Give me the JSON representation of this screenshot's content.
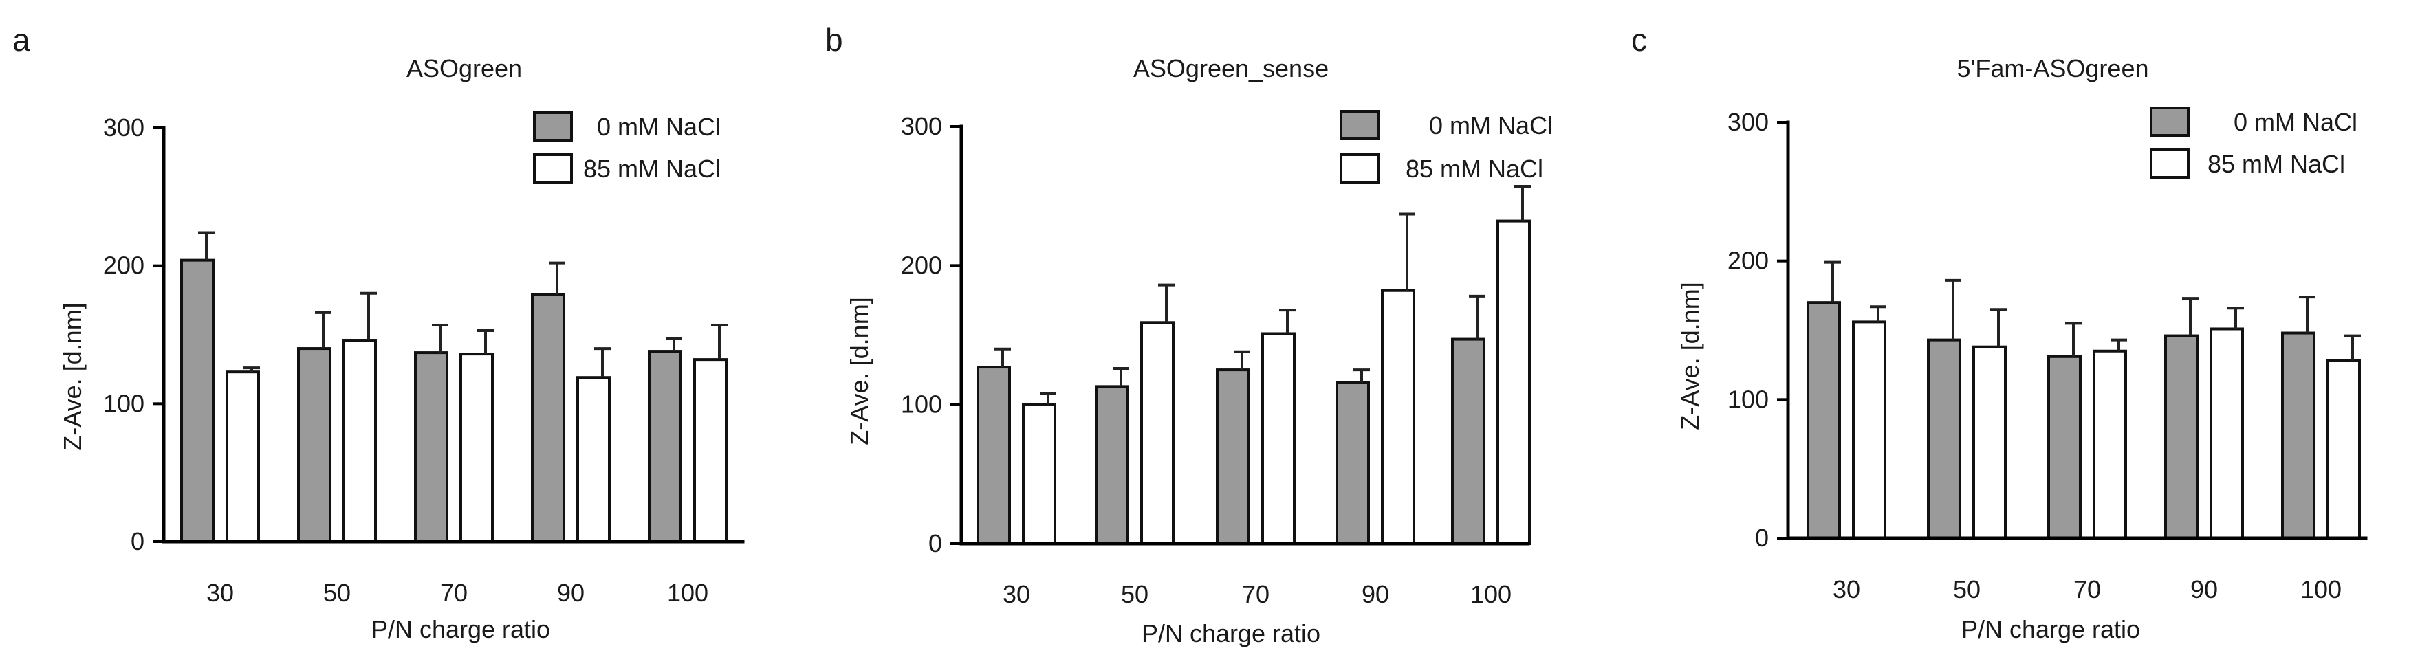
{
  "colors": {
    "series_0": "#9a9a9a",
    "series_1": "#ffffff",
    "axis": "#000000"
  },
  "chart_data": [
    {
      "type": "bar",
      "panel_label": "a",
      "title": "ASOgreen",
      "xlabel": "P/N charge ratio",
      "ylabel": "Z-Ave. [d.nm]",
      "ylim": [
        0,
        300
      ],
      "yticks": [
        "0",
        "100",
        "200",
        "300"
      ],
      "categories": [
        "30",
        "50",
        "70",
        "90",
        "100"
      ],
      "legend_position": "top-right",
      "series": [
        {
          "name": "0 mM NaCl",
          "values": [
            204,
            140,
            137,
            179,
            138
          ],
          "errors": [
            20,
            26,
            20,
            23,
            9
          ]
        },
        {
          "name": "85 mM NaCl",
          "values": [
            123,
            146,
            136,
            119,
            132
          ],
          "errors": [
            3,
            34,
            17,
            21,
            25
          ]
        }
      ]
    },
    {
      "type": "bar",
      "panel_label": "b",
      "title": "ASOgreen_sense",
      "xlabel": "P/N charge ratio",
      "ylabel": "Z-Ave. [d.nm]",
      "ylim": [
        0,
        300
      ],
      "yticks": [
        "0",
        "100",
        "200",
        "300"
      ],
      "categories": [
        "30",
        "50",
        "70",
        "90",
        "100"
      ],
      "legend_position": "top-right",
      "series": [
        {
          "name": "0 mM NaCl",
          "values": [
            127,
            113,
            125,
            116,
            147
          ],
          "errors": [
            13,
            13,
            13,
            9,
            31
          ]
        },
        {
          "name": "85 mM NaCl",
          "values": [
            100,
            159,
            151,
            182,
            232
          ],
          "errors": [
            8,
            27,
            17,
            55,
            25
          ]
        }
      ]
    },
    {
      "type": "bar",
      "panel_label": "c",
      "title": "5'Fam-ASOgreen",
      "xlabel": "P/N charge ratio",
      "ylabel": "Z-Ave. [d.nm]",
      "ylim": [
        0,
        300
      ],
      "yticks": [
        "0",
        "100",
        "200",
        "300"
      ],
      "categories": [
        "30",
        "50",
        "70",
        "90",
        "100"
      ],
      "legend_position": "top-right",
      "series": [
        {
          "name": "0 mM NaCl",
          "values": [
            170,
            143,
            131,
            146,
            148
          ],
          "errors": [
            29,
            43,
            24,
            27,
            26
          ]
        },
        {
          "name": "85 mM NaCl",
          "values": [
            156,
            138,
            135,
            151,
            128
          ],
          "errors": [
            11,
            27,
            8,
            15,
            18
          ]
        }
      ]
    }
  ]
}
